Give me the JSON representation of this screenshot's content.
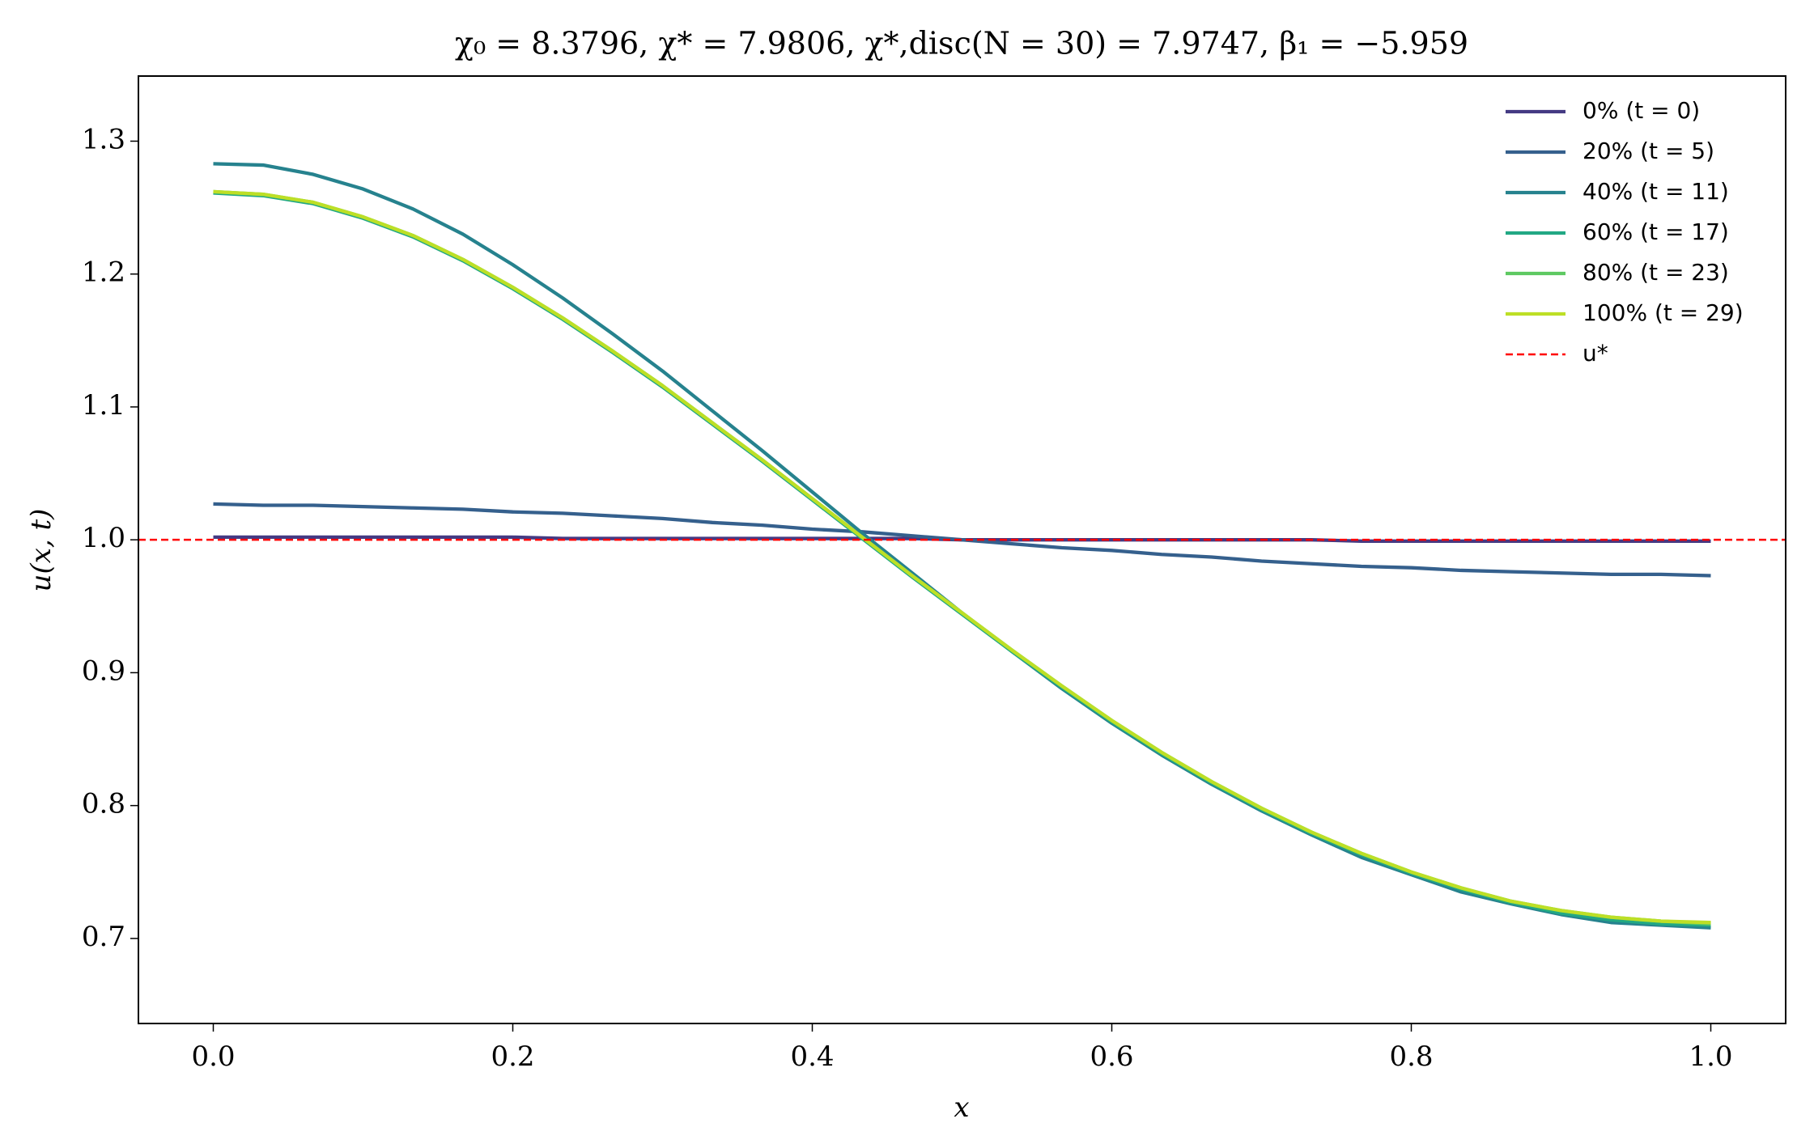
{
  "chart_data": {
    "type": "line",
    "title": "χ₀ = 8.3796,  χ* = 7.9806,  χ*,disc(N = 30) = 7.9747,  β₁ = −5.959",
    "xlabel": "x",
    "ylabel": "u(x, t)",
    "x": [
      0,
      0.0333,
      0.0667,
      0.1,
      0.1333,
      0.1667,
      0.2,
      0.2333,
      0.2667,
      0.3,
      0.3333,
      0.3667,
      0.4,
      0.4333,
      0.4667,
      0.5,
      0.5333,
      0.5667,
      0.6,
      0.6333,
      0.6667,
      0.7,
      0.7333,
      0.7667,
      0.8,
      0.8333,
      0.8667,
      0.9,
      0.9333,
      0.9667,
      1
    ],
    "series": [
      {
        "name": "0% (t = 0)",
        "color": "#443a83",
        "values": [
          1.002,
          1.002,
          1.002,
          1.002,
          1.002,
          1.002,
          1.002,
          1.001,
          1.001,
          1.001,
          1.001,
          1.001,
          1.001,
          1.001,
          1.001,
          1.0,
          1.0,
          1.0,
          1.0,
          1.0,
          1.0,
          1.0,
          1.0,
          0.999,
          0.999,
          0.999,
          0.999,
          0.999,
          0.999,
          0.999,
          0.999
        ]
      },
      {
        "name": "20% (t = 5)",
        "color": "#35608d",
        "values": [
          1.027,
          1.026,
          1.026,
          1.025,
          1.024,
          1.023,
          1.021,
          1.02,
          1.018,
          1.016,
          1.013,
          1.011,
          1.008,
          1.006,
          1.003,
          1.0,
          0.997,
          0.994,
          0.992,
          0.989,
          0.987,
          0.984,
          0.982,
          0.98,
          0.979,
          0.977,
          0.976,
          0.975,
          0.974,
          0.974,
          0.973
        ]
      },
      {
        "name": "40% (t = 11)",
        "color": "#26828e",
        "values": [
          1.283,
          1.282,
          1.275,
          1.264,
          1.249,
          1.23,
          1.207,
          1.182,
          1.155,
          1.127,
          1.097,
          1.067,
          1.036,
          1.005,
          0.975,
          0.945,
          0.916,
          0.888,
          0.862,
          0.838,
          0.816,
          0.796,
          0.778,
          0.761,
          0.748,
          0.735,
          0.726,
          0.718,
          0.712,
          0.71,
          0.708
        ]
      },
      {
        "name": "60% (t = 17)",
        "color": "#22a884",
        "values": [
          1.261,
          1.259,
          1.253,
          1.242,
          1.228,
          1.21,
          1.189,
          1.166,
          1.141,
          1.115,
          1.087,
          1.059,
          1.03,
          1.001,
          0.972,
          0.944,
          0.916,
          0.889,
          0.863,
          0.839,
          0.817,
          0.797,
          0.779,
          0.763,
          0.749,
          0.737,
          0.727,
          0.719,
          0.714,
          0.711,
          0.71
        ]
      },
      {
        "name": "80% (t = 23)",
        "color": "#5ec962",
        "values": [
          1.262,
          1.26,
          1.254,
          1.243,
          1.229,
          1.211,
          1.19,
          1.167,
          1.142,
          1.116,
          1.088,
          1.06,
          1.031,
          1.002,
          0.973,
          0.945,
          0.917,
          0.89,
          0.864,
          0.84,
          0.818,
          0.798,
          0.78,
          0.764,
          0.75,
          0.738,
          0.728,
          0.721,
          0.716,
          0.713,
          0.711
        ]
      },
      {
        "name": "100% (t = 29)",
        "color": "#bddf26",
        "values": [
          1.262,
          1.26,
          1.254,
          1.243,
          1.229,
          1.211,
          1.19,
          1.167,
          1.142,
          1.116,
          1.088,
          1.06,
          1.031,
          1.002,
          0.973,
          0.945,
          0.917,
          0.89,
          0.864,
          0.84,
          0.818,
          0.798,
          0.78,
          0.764,
          0.75,
          0.738,
          0.728,
          0.721,
          0.716,
          0.713,
          0.712
        ]
      }
    ],
    "reference_line": {
      "name": "u*",
      "y": 1,
      "color": "#ff0000"
    },
    "xlim": [
      -0.05,
      1.05
    ],
    "ylim": [
      0.636,
      1.349
    ],
    "xticks": [
      {
        "value": 0,
        "label": "0.0"
      },
      0.2,
      0.4,
      0.6,
      0.8,
      {
        "value": 1,
        "label": "1.0"
      }
    ],
    "yticks": [
      0.7,
      0.8,
      0.9,
      {
        "value": 1,
        "label": "1.0"
      },
      1.1,
      1.2,
      1.3
    ],
    "legend": "upper right"
  }
}
